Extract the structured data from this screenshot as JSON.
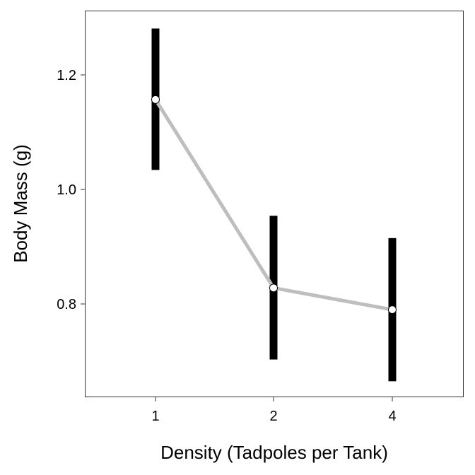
{
  "chart_data": {
    "type": "line",
    "title": "",
    "xlabel": "Density (Tadpoles per Tank)",
    "ylabel": "Body Mass (g)",
    "categories": [
      "1",
      "2",
      "4"
    ],
    "series": [
      {
        "values": [
          1.157,
          0.828,
          0.79
        ],
        "lower": [
          1.034,
          0.703,
          0.665
        ],
        "upper": [
          1.281,
          0.954,
          0.915
        ]
      }
    ],
    "y_ticks": [
      0.8,
      1.0,
      1.2
    ],
    "y_tick_labels": [
      "0.8",
      "1.0",
      "1.2"
    ],
    "ylim": [
      0.63,
      1.32
    ],
    "grid": false,
    "legend": "none",
    "colors": {
      "line": "#bebebe",
      "error_bar": "#000000",
      "point_fill": "#ffffff",
      "point_stroke": "#000000",
      "panel_border": "#333333"
    }
  }
}
